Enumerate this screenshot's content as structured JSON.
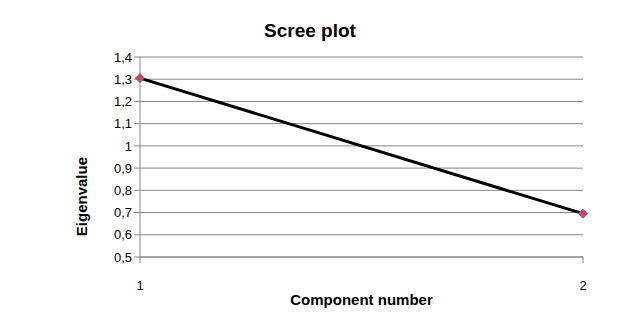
{
  "chart_data": {
    "type": "line",
    "title": "Scree plot",
    "x_label": "Component number",
    "y_label": "Eigenvalue",
    "categories": [
      "1",
      "2"
    ],
    "series": [
      {
        "name": "Eigenvalue",
        "color": "#000000",
        "marker": "diamond",
        "values": [
          1.305,
          0.695
        ]
      }
    ],
    "ylim": [
      0.5,
      1.4
    ],
    "yticks": [
      {
        "value": 0.5,
        "label": "0,5"
      },
      {
        "value": 0.6,
        "label": "0,6"
      },
      {
        "value": 0.7,
        "label": "0,7"
      },
      {
        "value": 0.8,
        "label": "0,8"
      },
      {
        "value": 0.9,
        "label": "0,9"
      },
      1,
      {
        "value": 1.1,
        "label": "1,1"
      },
      {
        "value": 1.2,
        "label": "1,2"
      },
      {
        "value": 1.3,
        "label": "1,3"
      },
      {
        "value": 1.4,
        "label": "1,4"
      }
    ],
    "grid": true
  }
}
